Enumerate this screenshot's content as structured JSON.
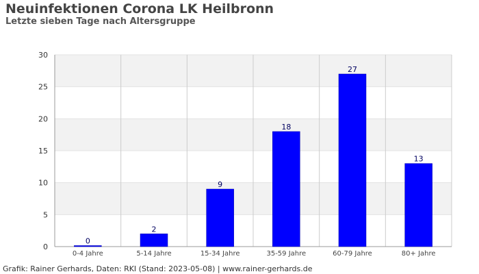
{
  "chart_data": {
    "type": "bar",
    "title": "Neuinfektionen Corona LK Heilbronn",
    "subtitle": "Letzte sieben Tage nach Altersgruppe",
    "categories": [
      "0-4 Jahre",
      "5-14 Jahre",
      "15-34 Jahre",
      "35-59 Jahre",
      "60-79 Jahre",
      "80+ Jahre"
    ],
    "values": [
      0,
      2,
      9,
      18,
      27,
      13
    ],
    "ylim": [
      0,
      30
    ],
    "yticks": [
      0,
      5,
      10,
      15,
      20,
      25,
      30
    ],
    "bar_color": "#0000ff",
    "band_color": "#f2f2f2",
    "grid": true,
    "show_data_labels": true
  },
  "footer": "Grafik: Rainer Gerhards, Daten: RKI (Stand: 2023-05-08) | www.rainer-gerhards.de"
}
